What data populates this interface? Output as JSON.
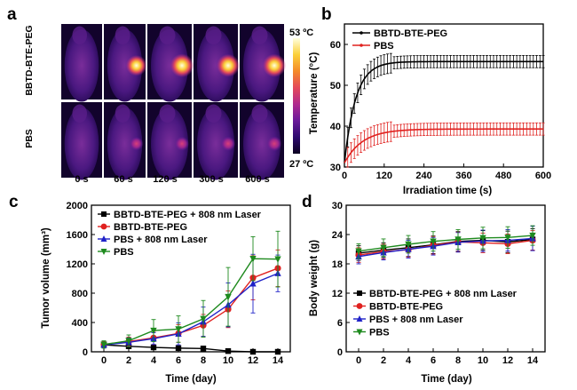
{
  "panel_labels": [
    "a",
    "b",
    "c",
    "d"
  ],
  "thermal": {
    "rows": [
      "BBTD-BTE-PEG",
      "PBS"
    ],
    "times": [
      "0 s",
      "60 s",
      "120 s",
      "300 s",
      "600 s"
    ],
    "hotspot_intensity": [
      [
        0.05,
        0.75,
        0.92,
        0.88,
        0.9
      ],
      [
        0.03,
        0.3,
        0.33,
        0.35,
        0.38
      ]
    ],
    "colorbar_max": "53 ºC",
    "colorbar_min": "27 ºC",
    "colormap": [
      "#0b0020",
      "#2d0a6e",
      "#6a1a9a",
      "#b02a8e",
      "#e4495a",
      "#f48a2a",
      "#fbd03a",
      "#ffffe0"
    ]
  },
  "chart_data": [
    {
      "panel": "b",
      "type": "line",
      "xlabel": "Irradiation time (s)",
      "ylabel": "Temperature (°C)",
      "xlim": [
        0,
        600
      ],
      "ylim": [
        30,
        65
      ],
      "xticks": [
        0,
        120,
        240,
        360,
        480,
        600
      ],
      "yticks": [
        30,
        40,
        50,
        60
      ],
      "legend_position": "top-left",
      "series": [
        {
          "name": "BBTD-BTE-PEG",
          "color": "#000000",
          "plateau": 55.8,
          "start": 31,
          "tau": 34,
          "error": 1.5
        },
        {
          "name": "PBS",
          "color": "#e0211f",
          "plateau": 39.3,
          "start": 31,
          "tau": 55,
          "error": 1.5
        }
      ]
    },
    {
      "panel": "c",
      "type": "line",
      "xlabel": "Time (day)",
      "ylabel": "Tumor volume (mm³)",
      "xlim": [
        -1,
        15
      ],
      "ylim": [
        0,
        2000
      ],
      "xticks": [
        0,
        2,
        4,
        6,
        8,
        10,
        12,
        14
      ],
      "yticks": [
        0,
        400,
        800,
        1200,
        1600,
        2000
      ],
      "legend_position": "top-left",
      "x": [
        0,
        2,
        4,
        6,
        8,
        10,
        12,
        14
      ],
      "series": [
        {
          "name": "BBTD-BTE-PEG + 808 nm Laser",
          "color": "#000000",
          "marker": "square",
          "values": [
            95,
            75,
            60,
            50,
            45,
            10,
            0,
            0
          ],
          "errors": [
            30,
            20,
            15,
            10,
            10,
            5,
            3,
            3
          ]
        },
        {
          "name": "BBTD-BTE-PEG",
          "color": "#e0211f",
          "marker": "circle",
          "values": [
            100,
            140,
            190,
            250,
            360,
            580,
            1010,
            1140
          ],
          "errors": [
            40,
            60,
            90,
            120,
            150,
            250,
            300,
            250
          ]
        },
        {
          "name": "PBS + 808 nm Laser",
          "color": "#1f22c8",
          "marker": "triangle-up",
          "values": [
            95,
            130,
            180,
            245,
            410,
            640,
            930,
            1070
          ],
          "errors": [
            40,
            60,
            80,
            150,
            200,
            300,
            400,
            250
          ]
        },
        {
          "name": "PBS",
          "color": "#1e8a1e",
          "marker": "triangle-down",
          "values": [
            100,
            150,
            290,
            310,
            450,
            750,
            1270,
            1265
          ],
          "errors": [
            50,
            80,
            150,
            180,
            250,
            400,
            300,
            380
          ]
        }
      ]
    },
    {
      "panel": "d",
      "type": "line",
      "xlabel": "Time (day)",
      "ylabel": "Body weight (g)",
      "xlim": [
        -1,
        15
      ],
      "ylim": [
        0,
        30
      ],
      "xticks": [
        0,
        2,
        4,
        6,
        8,
        10,
        12,
        14
      ],
      "yticks": [
        0,
        6,
        12,
        18,
        24,
        30
      ],
      "legend_position": "bottom-left",
      "x": [
        0,
        2,
        4,
        6,
        8,
        10,
        12,
        14
      ],
      "series": [
        {
          "name": "BBTD-BTE-PEG + 808 nm Laser",
          "color": "#000000",
          "marker": "square",
          "values": [
            20.2,
            20.8,
            21.3,
            21.9,
            22.6,
            22.8,
            22.5,
            23.0
          ],
          "errors": [
            1.5,
            1.5,
            1.8,
            1.8,
            2.0,
            2.0,
            2.2,
            2.2
          ]
        },
        {
          "name": "BBTD-BTE-PEG",
          "color": "#e0211f",
          "marker": "circle",
          "values": [
            19.8,
            20.5,
            20.9,
            21.8,
            22.5,
            22.3,
            22.1,
            22.8
          ],
          "errors": [
            1.5,
            1.5,
            1.5,
            1.8,
            2.0,
            2.0,
            2.0,
            2.0
          ]
        },
        {
          "name": "PBS + 808 nm Laser",
          "color": "#1f22c8",
          "marker": "triangle-up",
          "values": [
            19.5,
            20.3,
            21.0,
            21.6,
            22.4,
            22.7,
            22.8,
            23.2
          ],
          "errors": [
            1.5,
            1.5,
            1.8,
            1.8,
            2.0,
            2.2,
            2.2,
            2.5
          ]
        },
        {
          "name": "PBS",
          "color": "#1e8a1e",
          "marker": "triangle-down",
          "values": [
            20.6,
            21.3,
            22.0,
            22.6,
            23.0,
            23.3,
            23.4,
            23.8
          ],
          "errors": [
            1.5,
            1.8,
            1.8,
            2.0,
            2.0,
            2.2,
            2.2,
            2.0
          ]
        }
      ]
    }
  ]
}
